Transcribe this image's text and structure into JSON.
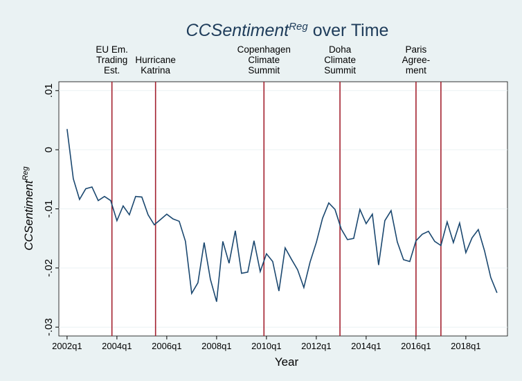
{
  "chart_data": {
    "type": "line",
    "title": {
      "italic": "CCSentiment",
      "sup": "Reg",
      "rest": " over Time"
    },
    "x_label": "Year",
    "y_label": {
      "italic": "CCSentiment",
      "sup": "Reg"
    },
    "x": [
      2002,
      2002.25,
      2002.5,
      2002.75,
      2003,
      2003.25,
      2003.5,
      2003.75,
      2004,
      2004.25,
      2004.5,
      2004.75,
      2005,
      2005.25,
      2005.5,
      2005.75,
      2006,
      2006.25,
      2006.5,
      2006.75,
      2007,
      2007.25,
      2007.5,
      2007.75,
      2008,
      2008.25,
      2008.5,
      2008.75,
      2009,
      2009.25,
      2009.5,
      2009.75,
      2010,
      2010.25,
      2010.5,
      2010.75,
      2011,
      2011.25,
      2011.5,
      2011.75,
      2012,
      2012.25,
      2012.5,
      2012.75,
      2013,
      2013.25,
      2013.5,
      2013.75,
      2014,
      2014.25,
      2014.5,
      2014.75,
      2015,
      2015.25,
      2015.5,
      2015.75,
      2016,
      2016.25,
      2016.5,
      2016.75,
      2017,
      2017.25,
      2017.5,
      2017.75,
      2018,
      2018.25,
      2018.5,
      2018.75,
      2019,
      2019.25
    ],
    "series": [
      {
        "name": "CCSentiment",
        "color": "#1a476f",
        "values": [
          0.0035,
          -0.0049,
          -0.0084,
          -0.0066,
          -0.0063,
          -0.0086,
          -0.0079,
          -0.0086,
          -0.012,
          -0.0095,
          -0.011,
          -0.0079,
          -0.008,
          -0.011,
          -0.0127,
          -0.0118,
          -0.0109,
          -0.0117,
          -0.0121,
          -0.0155,
          -0.0243,
          -0.0225,
          -0.0157,
          -0.0219,
          -0.0257,
          -0.0155,
          -0.0192,
          -0.0137,
          -0.0209,
          -0.0207,
          -0.0154,
          -0.0206,
          -0.0176,
          -0.0189,
          -0.0239,
          -0.0166,
          -0.0185,
          -0.0203,
          -0.0233,
          -0.019,
          -0.0157,
          -0.0116,
          -0.009,
          -0.0101,
          -0.0134,
          -0.0152,
          -0.015,
          -0.0101,
          -0.0125,
          -0.0109,
          -0.0195,
          -0.012,
          -0.0103,
          -0.0156,
          -0.0186,
          -0.0189,
          -0.0154,
          -0.0143,
          -0.0138,
          -0.0155,
          -0.0162,
          -0.0122,
          -0.0157,
          -0.0124,
          -0.0174,
          -0.0149,
          -0.0135,
          -0.0171,
          -0.0216,
          -0.0242
        ]
      }
    ],
    "events": [
      {
        "x": 2003.8,
        "label": [
          "EU Em.",
          "Trading",
          "Est."
        ]
      },
      {
        "x": 2005.55,
        "label": [
          "Hurricane",
          "Katrina"
        ]
      },
      {
        "x": 2009.9,
        "label": [
          "Copenhagen",
          "Climate",
          "Summit"
        ]
      },
      {
        "x": 2012.95,
        "label": [
          "Doha",
          "Climate",
          "Summit"
        ]
      },
      {
        "x": 2016.0,
        "label": [
          "Paris",
          "Agree-",
          "ment"
        ]
      },
      {
        "x": 2017.0
      }
    ],
    "event_color": "#a3202e",
    "xlim": [
      2001.67,
      2019.67
    ],
    "xticks": [
      {
        "value": 2002,
        "label": "2002q1"
      },
      {
        "value": 2004,
        "label": "2004q1"
      },
      {
        "value": 2006,
        "label": "2006q1"
      },
      {
        "value": 2008,
        "label": "2008q1"
      },
      {
        "value": 2010,
        "label": "2010q1"
      },
      {
        "value": 2012,
        "label": "2012q1"
      },
      {
        "value": 2014,
        "label": "2014q1"
      },
      {
        "value": 2016,
        "label": "2016q1"
      },
      {
        "value": 2018,
        "label": "2018q1"
      }
    ],
    "ylim": [
      -0.0315,
      0.0115
    ],
    "yticks": [
      {
        "value": -0.03,
        "label": "-.03"
      },
      {
        "value": -0.02,
        "label": "-.02"
      },
      {
        "value": -0.01,
        "label": "-.01"
      },
      0,
      {
        "value": 0.01,
        "label": ".01"
      }
    ],
    "grid": true
  }
}
